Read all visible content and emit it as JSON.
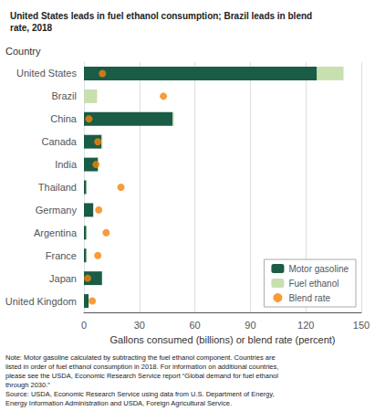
{
  "chart_data": {
    "type": "bar",
    "orientation": "horizontal",
    "stacked": true,
    "title": "United States leads in fuel ethanol consumption; Brazil leads in blend\nrate, 2018",
    "ylabel": "Country",
    "xlabel": "Gallons consumed (billions) or blend rate (percent)",
    "categories": [
      "United States",
      "Brazil",
      "China",
      "Canada",
      "India",
      "Thailand",
      "Germany",
      "Argentina",
      "France",
      "Japan",
      "United Kingdom"
    ],
    "series": [
      {
        "name": "Motor gasoline",
        "type": "bar",
        "color": "#1a5c45",
        "values": [
          126.0,
          0.0,
          48.0,
          9.5,
          7.5,
          1.3,
          5.0,
          1.3,
          1.3,
          9.8,
          2.5
        ]
      },
      {
        "name": "Fuel ethanol",
        "type": "bar",
        "color": "#c8e0b0",
        "values": [
          14.4,
          7.1,
          0.7,
          0.6,
          0.6,
          0.3,
          0.3,
          0.3,
          0.3,
          0.1,
          0.1
        ]
      },
      {
        "name": "Blend rate",
        "type": "scatter",
        "marker": "circle",
        "color": "#f5820a",
        "values": [
          10.0,
          43.0,
          2.7,
          7.5,
          6.5,
          20.0,
          8.0,
          12.0,
          7.5,
          2.0,
          4.5
        ]
      }
    ],
    "xlim": [
      0,
      150
    ],
    "xticks": [
      0,
      30,
      60,
      90,
      120,
      150
    ],
    "grid": true,
    "legend": "lower right",
    "annotations": [
      "Note: Motor gasoline calculated by subtracting the fuel ethanol component. Countries are\nlisted in order of fuel ethanol consumption in 2018. For information on additional countries,\nplease see the USDA, Economic Research Service report “Global demand for fuel ethanol\nthrough 2030.”",
      "Source: USDA, Economic Research Service using data from U.S. Department of Energy,\nEnergy Information Administration and USDA, Foreign Agricultural Service."
    ]
  }
}
